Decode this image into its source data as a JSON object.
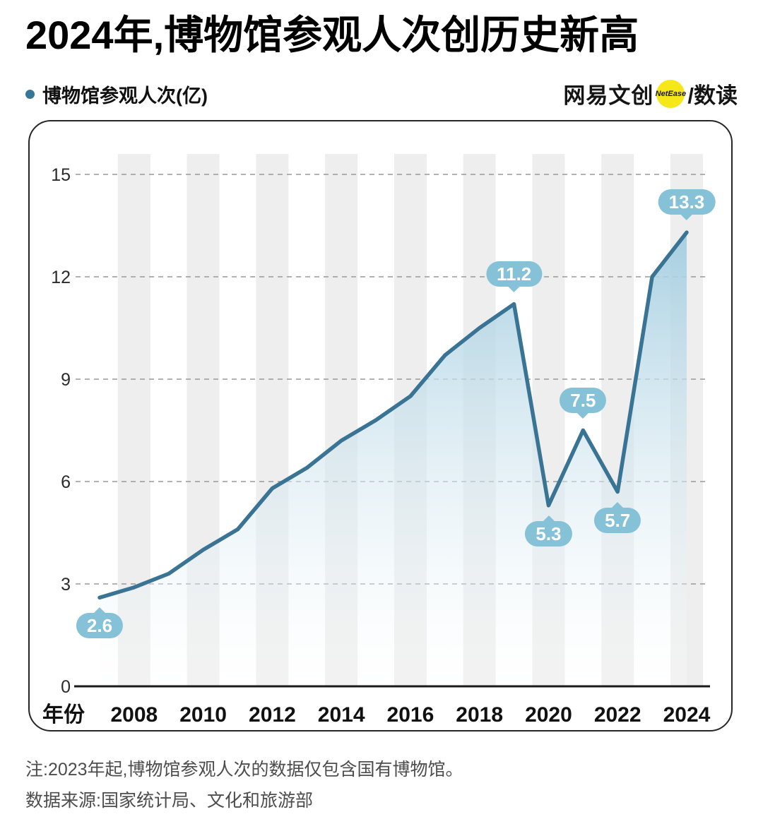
{
  "header": {
    "title": "2024年,博物馆参观人次创历史新高",
    "legend_label": "博物馆参观人次(亿)",
    "brand": {
      "name": "网易文创",
      "badge": "NetEase",
      "sub": "/数读"
    }
  },
  "footer": {
    "note": "注:2023年起,博物馆参观人次的数据仅包含国有博物馆。",
    "source": "数据来源:国家统计局、文化和旅游部"
  },
  "colors": {
    "line": "#3a7494",
    "area_top": "#a3cde0",
    "area_bottom": "#ffffff",
    "pill_bg": "#85c1d7",
    "pill_text": "#ffffff",
    "stripe": "#eeeeee",
    "gridline": "#999999",
    "axis_line": "#1a1a1a",
    "legend_dot": "#357795",
    "badge_yellow": "#f5e718"
  },
  "chart_data": {
    "type": "area",
    "title": "2024年,博物馆参观人次创历史新高",
    "series_label": "博物馆参观人次(亿)",
    "xlabel": "年份",
    "ylabel": "",
    "x": [
      2007,
      2008,
      2009,
      2010,
      2011,
      2012,
      2013,
      2014,
      2015,
      2016,
      2017,
      2018,
      2019,
      2020,
      2021,
      2022,
      2023,
      2024
    ],
    "values": [
      2.6,
      2.9,
      3.3,
      4.0,
      4.6,
      5.8,
      6.4,
      7.2,
      7.8,
      8.5,
      9.7,
      10.5,
      11.2,
      5.3,
      7.5,
      5.7,
      12.0,
      13.3
    ],
    "ylim": [
      0,
      15
    ],
    "yticks": [
      0,
      3,
      6,
      9,
      12,
      15
    ],
    "xticks": [
      2008,
      2010,
      2012,
      2014,
      2016,
      2018,
      2020,
      2022,
      2024
    ],
    "grid": "horizontal-dashed",
    "legend_position": "top-left",
    "annotations": [
      {
        "x": 2007,
        "value": 2.6,
        "label": "2.6",
        "position": "below"
      },
      {
        "x": 2019,
        "value": 11.2,
        "label": "11.2",
        "position": "above"
      },
      {
        "x": 2020,
        "value": 5.3,
        "label": "5.3",
        "position": "below"
      },
      {
        "x": 2021,
        "value": 7.5,
        "label": "7.5",
        "position": "above"
      },
      {
        "x": 2022,
        "value": 5.7,
        "label": "5.7",
        "position": "below"
      },
      {
        "x": 2024,
        "value": 13.3,
        "label": "13.3",
        "position": "above"
      }
    ]
  }
}
